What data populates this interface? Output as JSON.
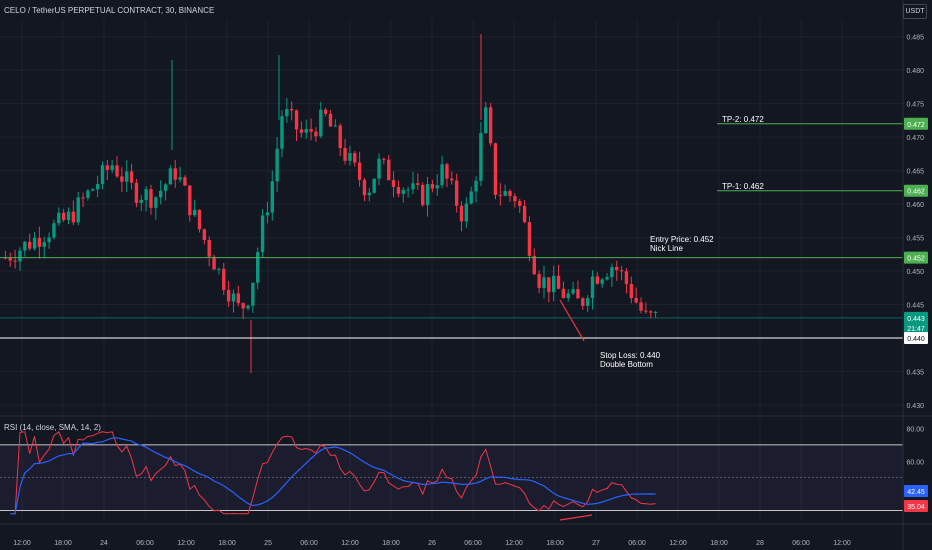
{
  "title": "CELO / TetherUS PERPETUAL CONTRACT, 30, BINANCE",
  "currency": "USDT",
  "price_axis": {
    "ticks": [
      "0.485",
      "0.480",
      "0.475",
      "0.470",
      "0.465",
      "0.460",
      "0.455",
      "0.450",
      "0.445",
      "0.440",
      "0.435",
      "0.430"
    ],
    "tick_values": [
      0.485,
      0.48,
      0.475,
      0.47,
      0.465,
      0.46,
      0.455,
      0.45,
      0.445,
      0.44,
      0.435,
      0.43
    ]
  },
  "time_axis": {
    "labels": [
      "12:00",
      "18:00",
      "24",
      "06:00",
      "12:00",
      "18:00",
      "25",
      "06:00",
      "12:00",
      "18:00",
      "26",
      "06:00",
      "12:00",
      "18:00",
      "27",
      "06:00",
      "12:00",
      "18:00",
      "28",
      "06:00",
      "12:00"
    ]
  },
  "levels": {
    "tp2": {
      "label": "TP-2: 0.472",
      "badge": "0.472",
      "price": 0.472,
      "color": "#4caf50"
    },
    "tp1": {
      "label": "TP-1: 0.462",
      "badge": "0.462",
      "price": 0.462,
      "color": "#4caf50"
    },
    "entry": {
      "label": "Entry Price: 0.452",
      "sublabel": "Nick Line",
      "badge": "0.452",
      "price": 0.452,
      "color": "#4caf50"
    },
    "current": {
      "badge": "0.443",
      "countdown": "21:47",
      "price": 0.443,
      "color": "#089981"
    },
    "stop": {
      "label": "Stop Loss: 0.440",
      "sublabel": "Double Bottom",
      "badge": "0.440",
      "price": 0.44,
      "color": "#ffffff"
    }
  },
  "rsi": {
    "title": "RSI (14, close, SMA, 14, 2)",
    "ticks": [
      "80.00",
      "60.00",
      "40.00"
    ],
    "tick_values": [
      80,
      60,
      40
    ],
    "upper_band": 70,
    "middle_band": 50,
    "lower_band": 30,
    "value_rsi": "35.04",
    "value_ma": "42.45",
    "rsi_color": "#f23645",
    "ma_color": "#2962ff"
  },
  "colors": {
    "up": "#089981",
    "down": "#f23645",
    "background": "#131722",
    "grid": "#1e222d"
  },
  "chart_data": {
    "type": "candlestick",
    "x_labels": [
      "12:00",
      "18:00",
      "24",
      "06:00",
      "12:00",
      "18:00",
      "25",
      "06:00",
      "12:00",
      "18:00",
      "26",
      "06:00",
      "12:00",
      "18:00",
      "27"
    ],
    "close_points": [
      [
        0,
        0.452
      ],
      [
        8,
        0.456
      ],
      [
        12,
        0.458
      ],
      [
        16,
        0.462
      ],
      [
        20,
        0.466
      ],
      [
        24,
        0.462
      ],
      [
        28,
        0.461
      ],
      [
        32,
        0.465
      ],
      [
        36,
        0.457
      ],
      [
        40,
        0.45
      ],
      [
        44,
        0.444
      ],
      [
        46,
        0.447
      ],
      [
        48,
        0.456
      ],
      [
        50,
        0.463
      ],
      [
        52,
        0.474
      ],
      [
        56,
        0.47
      ],
      [
        60,
        0.473
      ],
      [
        64,
        0.467
      ],
      [
        68,
        0.462
      ],
      [
        70,
        0.466
      ],
      [
        74,
        0.463
      ],
      [
        78,
        0.461
      ],
      [
        82,
        0.465
      ],
      [
        86,
        0.458
      ],
      [
        88,
        0.463
      ],
      [
        90,
        0.474
      ],
      [
        92,
        0.462
      ],
      [
        96,
        0.461
      ],
      [
        98,
        0.455
      ],
      [
        100,
        0.449
      ],
      [
        104,
        0.447
      ],
      [
        108,
        0.445
      ],
      [
        110,
        0.449
      ],
      [
        114,
        0.451
      ],
      [
        116,
        0.449
      ],
      [
        120,
        0.443
      ]
    ],
    "x_max": 122
  }
}
